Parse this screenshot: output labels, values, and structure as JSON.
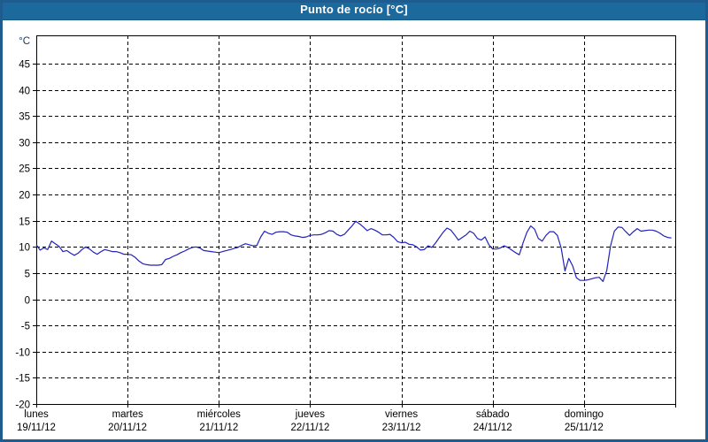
{
  "window": {
    "title": "Punto de rocío [°C]"
  },
  "colors": {
    "titlebar_bg": "#1c699e",
    "frame_border": "#1e5c8f",
    "grid": "#000000",
    "axis": "#000000",
    "tick_text": "#000000",
    "unit_text": "#17365d",
    "line": "#2222bd",
    "background": "#ffffff"
  },
  "chart_data": {
    "type": "line",
    "title": "Punto de rocío [°C]",
    "xlabel": "",
    "ylabel": "°C",
    "ylim": [
      -20,
      50.4
    ],
    "y_ticks": [
      45,
      40,
      35,
      30,
      25,
      20,
      15,
      10,
      5,
      0,
      -5,
      -10,
      -15,
      -20
    ],
    "grid": "dashed-both",
    "legend": "none",
    "days": [
      {
        "name": "lunes",
        "date": "19/11/12"
      },
      {
        "name": "martes",
        "date": "20/11/12"
      },
      {
        "name": "miércoles",
        "date": "21/11/12"
      },
      {
        "name": "jueves",
        "date": "22/11/12"
      },
      {
        "name": "viernes",
        "date": "23/11/12"
      },
      {
        "name": "sábado",
        "date": "24/11/12"
      },
      {
        "name": "domingo",
        "date": "25/11/12"
      }
    ],
    "series": [
      {
        "name": "Punto de rocío",
        "color": "#2222bd",
        "samples_per_day": 24,
        "values": [
          10.4,
          9.4,
          9.8,
          9.5,
          11.1,
          10.6,
          10.1,
          9.1,
          9.3,
          8.8,
          8.4,
          8.8,
          9.5,
          10.0,
          9.6,
          9.0,
          8.6,
          9.1,
          9.5,
          9.3,
          9.1,
          9.1,
          8.9,
          8.6,
          8.6,
          8.5,
          8.0,
          7.3,
          6.8,
          6.6,
          6.5,
          6.5,
          6.5,
          6.6,
          7.6,
          7.8,
          8.2,
          8.5,
          8.9,
          9.2,
          9.6,
          9.9,
          10.0,
          9.8,
          9.3,
          9.2,
          9.1,
          9.0,
          8.9,
          9.1,
          9.3,
          9.5,
          9.7,
          9.9,
          10.3,
          10.6,
          10.4,
          10.2,
          10.3,
          11.9,
          13.0,
          12.6,
          12.4,
          12.8,
          12.9,
          12.9,
          12.8,
          12.3,
          12.1,
          12.0,
          11.8,
          11.9,
          12.2,
          12.3,
          12.3,
          12.4,
          12.7,
          13.1,
          13.0,
          12.4,
          12.1,
          12.4,
          13.2,
          14.0,
          14.9,
          14.4,
          13.8,
          13.1,
          13.5,
          13.2,
          12.8,
          12.3,
          12.3,
          12.4,
          11.8,
          11.0,
          10.8,
          10.9,
          10.5,
          10.4,
          10.0,
          9.4,
          9.5,
          10.2,
          9.9,
          10.8,
          11.8,
          12.8,
          13.6,
          13.2,
          12.3,
          11.3,
          11.8,
          12.3,
          13.0,
          12.6,
          11.6,
          11.3,
          11.9,
          10.4,
          9.6,
          9.6,
          9.8,
          10.2,
          9.9,
          9.4,
          8.9,
          8.5,
          10.8,
          12.8,
          14.0,
          13.4,
          11.6,
          11.1,
          12.2,
          12.9,
          12.9,
          12.2,
          9.8,
          5.4,
          7.8,
          6.4,
          4.1,
          3.6,
          3.6,
          3.7,
          3.9,
          4.1,
          4.2,
          3.4,
          5.5,
          10.2,
          13.0,
          13.8,
          13.7,
          12.9,
          12.2,
          12.9,
          13.5,
          13.0,
          13.1,
          13.2,
          13.2,
          13.0,
          12.6,
          12.1,
          11.8,
          11.7
        ]
      }
    ]
  }
}
